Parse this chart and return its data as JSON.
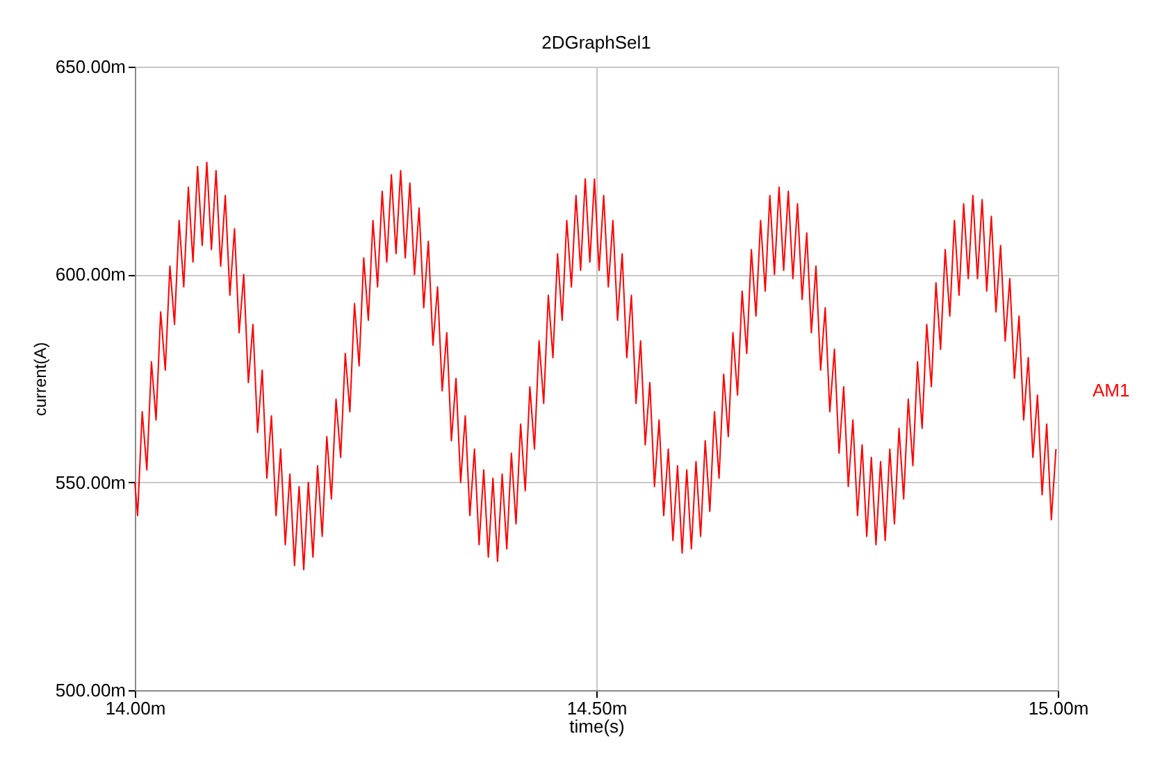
{
  "chart_data": {
    "type": "line",
    "title": "2DGraphSel1",
    "xlabel": "time(s)",
    "ylabel": "current(A)",
    "x": [
      14,
      14.003,
      14.008,
      14.013,
      14.018,
      14.023,
      14.028,
      14.033,
      14.038,
      14.043,
      14.048,
      14.053,
      14.058,
      14.063,
      14.068,
      14.073,
      14.078,
      14.083,
      14.088,
      14.093,
      14.098,
      14.103,
      14.108,
      14.113,
      14.118,
      14.123,
      14.128,
      14.133,
      14.138,
      14.143,
      14.148,
      14.153,
      14.158,
      14.163,
      14.168,
      14.173,
      14.178,
      14.183,
      14.188,
      14.193,
      14.198,
      14.203,
      14.208,
      14.213,
      14.218,
      14.223,
      14.228,
      14.233,
      14.238,
      14.243,
      14.248,
      14.253,
      14.258,
      14.263,
      14.268,
      14.273,
      14.278,
      14.283,
      14.288,
      14.293,
      14.298,
      14.303,
      14.308,
      14.313,
      14.318,
      14.323,
      14.328,
      14.333,
      14.338,
      14.343,
      14.348,
      14.353,
      14.358,
      14.363,
      14.368,
      14.373,
      14.378,
      14.383,
      14.388,
      14.393,
      14.398,
      14.403,
      14.408,
      14.413,
      14.418,
      14.423,
      14.428,
      14.433,
      14.438,
      14.443,
      14.448,
      14.453,
      14.458,
      14.463,
      14.468,
      14.473,
      14.478,
      14.483,
      14.488,
      14.493,
      14.498,
      14.503,
      14.508,
      14.513,
      14.518,
      14.523,
      14.528,
      14.533,
      14.538,
      14.543,
      14.548,
      14.553,
      14.558,
      14.563,
      14.568,
      14.573,
      14.578,
      14.583,
      14.588,
      14.593,
      14.598,
      14.603,
      14.608,
      14.613,
      14.618,
      14.623,
      14.628,
      14.633,
      14.638,
      14.643,
      14.648,
      14.653,
      14.658,
      14.663,
      14.668,
      14.673,
      14.678,
      14.683,
      14.688,
      14.693,
      14.698,
      14.703,
      14.708,
      14.713,
      14.718,
      14.723,
      14.728,
      14.733,
      14.738,
      14.743,
      14.748,
      14.753,
      14.758,
      14.763,
      14.768,
      14.773,
      14.778,
      14.783,
      14.788,
      14.793,
      14.798,
      14.803,
      14.808,
      14.813,
      14.818,
      14.823,
      14.828,
      14.833,
      14.838,
      14.843,
      14.848,
      14.853,
      14.858,
      14.863,
      14.868,
      14.873,
      14.878,
      14.883,
      14.888,
      14.893,
      14.898,
      14.903,
      14.908,
      14.913,
      14.918,
      14.923,
      14.928,
      14.933,
      14.938,
      14.943,
      14.948,
      14.953,
      14.958,
      14.963,
      14.968,
      14.973,
      14.978,
      14.983,
      14.988,
      14.993,
      14.998
    ],
    "series": [
      {
        "name": "AM1",
        "color": "#ff0000",
        "values": [
          550,
          542,
          567,
          553,
          579,
          565,
          591,
          577,
          602,
          588,
          613,
          597,
          621,
          603,
          626,
          607,
          627,
          606,
          625,
          602,
          619,
          595,
          611,
          586,
          600,
          574,
          588,
          562,
          577,
          551,
          566,
          542,
          558,
          535,
          552,
          530,
          549,
          529,
          550,
          532,
          554,
          537,
          561,
          546,
          570,
          556,
          581,
          567,
          593,
          578,
          604,
          589,
          613,
          597,
          620,
          603,
          624,
          605,
          625,
          604,
          622,
          600,
          616,
          592,
          608,
          583,
          597,
          572,
          586,
          560,
          575,
          550,
          566,
          542,
          558,
          535,
          553,
          532,
          551,
          531,
          552,
          534,
          557,
          540,
          564,
          548,
          573,
          558,
          584,
          569,
          595,
          580,
          605,
          589,
          613,
          597,
          619,
          601,
          623,
          603,
          623,
          601,
          619,
          597,
          613,
          589,
          605,
          580,
          595,
          569,
          584,
          559,
          574,
          549,
          565,
          542,
          558,
          536,
          554,
          533,
          553,
          534,
          555,
          537,
          560,
          543,
          567,
          551,
          576,
          561,
          586,
          571,
          596,
          581,
          606,
          590,
          613,
          596,
          619,
          600,
          621,
          601,
          620,
          599,
          617,
          594,
          610,
          586,
          602,
          577,
          592,
          567,
          582,
          557,
          573,
          549,
          565,
          542,
          559,
          537,
          556,
          535,
          555,
          536,
          558,
          540,
          563,
          546,
          570,
          554,
          579,
          563,
          588,
          573,
          598,
          582,
          606,
          590,
          613,
          595,
          617,
          599,
          619,
          599,
          618,
          596,
          614,
          591,
          607,
          584,
          599,
          575,
          590,
          565,
          580,
          556,
          571,
          547,
          564,
          541,
          558
        ]
      }
    ],
    "xlim": [
      14,
      15
    ],
    "xticks": [
      {
        "value": 14,
        "label": "14.00m"
      },
      {
        "value": 14.5,
        "label": "14.50m"
      },
      {
        "value": 15,
        "label": "15.00m"
      }
    ],
    "ylim": [
      500,
      650
    ],
    "yticks": [
      {
        "value": 500,
        "label": "500.00m"
      },
      {
        "value": 550,
        "label": "550.00m"
      },
      {
        "value": 600,
        "label": "600.00m"
      },
      {
        "value": 650,
        "label": "650.00m"
      }
    ],
    "grid": true,
    "legend": "right",
    "marker": "none",
    "line_style": "solid"
  }
}
